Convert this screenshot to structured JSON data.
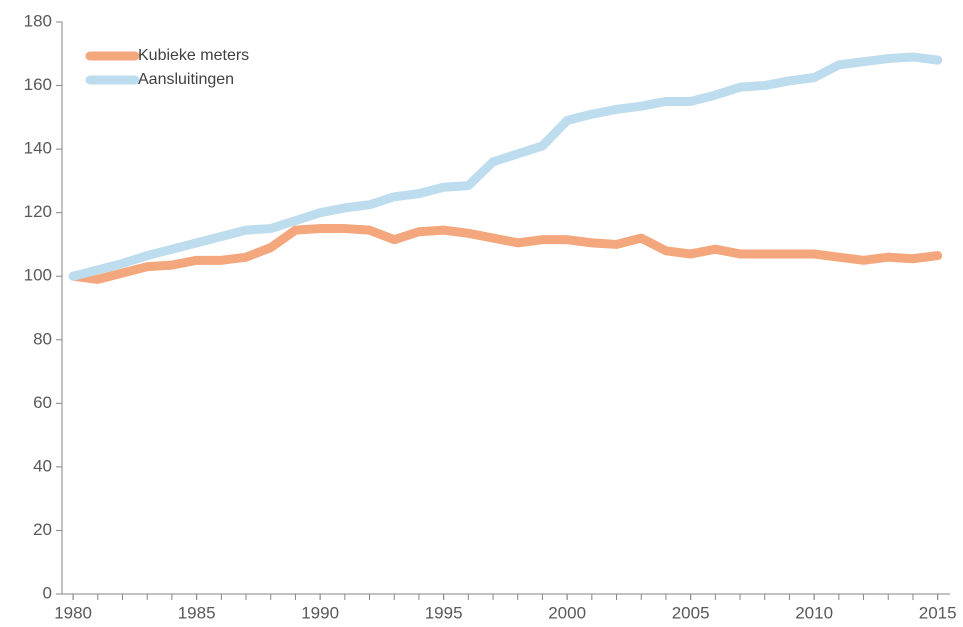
{
  "chart_data": {
    "type": "line",
    "x": [
      1980,
      1981,
      1982,
      1983,
      1984,
      1985,
      1986,
      1987,
      1988,
      1989,
      1990,
      1991,
      1992,
      1993,
      1994,
      1995,
      1996,
      1997,
      1998,
      1999,
      2000,
      2001,
      2002,
      2003,
      2004,
      2005,
      2006,
      2007,
      2008,
      2009,
      2010,
      2011,
      2012,
      2013,
      2014,
      2015
    ],
    "series": [
      {
        "name": "Kubieke meters",
        "color": "#f4a67c",
        "values": [
          100,
          99,
          101,
          103,
          103.5,
          105,
          105,
          106,
          109,
          114.5,
          115,
          115,
          114.5,
          111.5,
          114,
          114.5,
          113.5,
          112,
          110.5,
          111.5,
          111.5,
          110.5,
          110,
          112,
          108,
          107,
          108.5,
          107,
          107,
          107,
          107,
          106,
          105,
          106,
          105.5,
          106.5
        ]
      },
      {
        "name": "Aansluitingen",
        "color": "#bddcee",
        "values": [
          100,
          102,
          104,
          106.5,
          108.5,
          110.5,
          112.5,
          114.5,
          115,
          117.5,
          120,
          121.5,
          122.5,
          125,
          126,
          128,
          128.5,
          136,
          138.5,
          141,
          149,
          151,
          152.5,
          153.5,
          155,
          155,
          157,
          159.5,
          160,
          161.5,
          162.5,
          166.5,
          167.5,
          168.5,
          169,
          168
        ]
      }
    ],
    "xlim": [
      1979.55,
      2015.5
    ],
    "xticks": [
      1980,
      1985,
      1990,
      1995,
      2000,
      2005,
      2010,
      2015
    ],
    "ylim": [
      0,
      180
    ],
    "yticks": [
      0,
      20,
      40,
      60,
      80,
      100,
      120,
      140,
      160,
      180
    ],
    "grid": false,
    "legend": "top-left"
  }
}
